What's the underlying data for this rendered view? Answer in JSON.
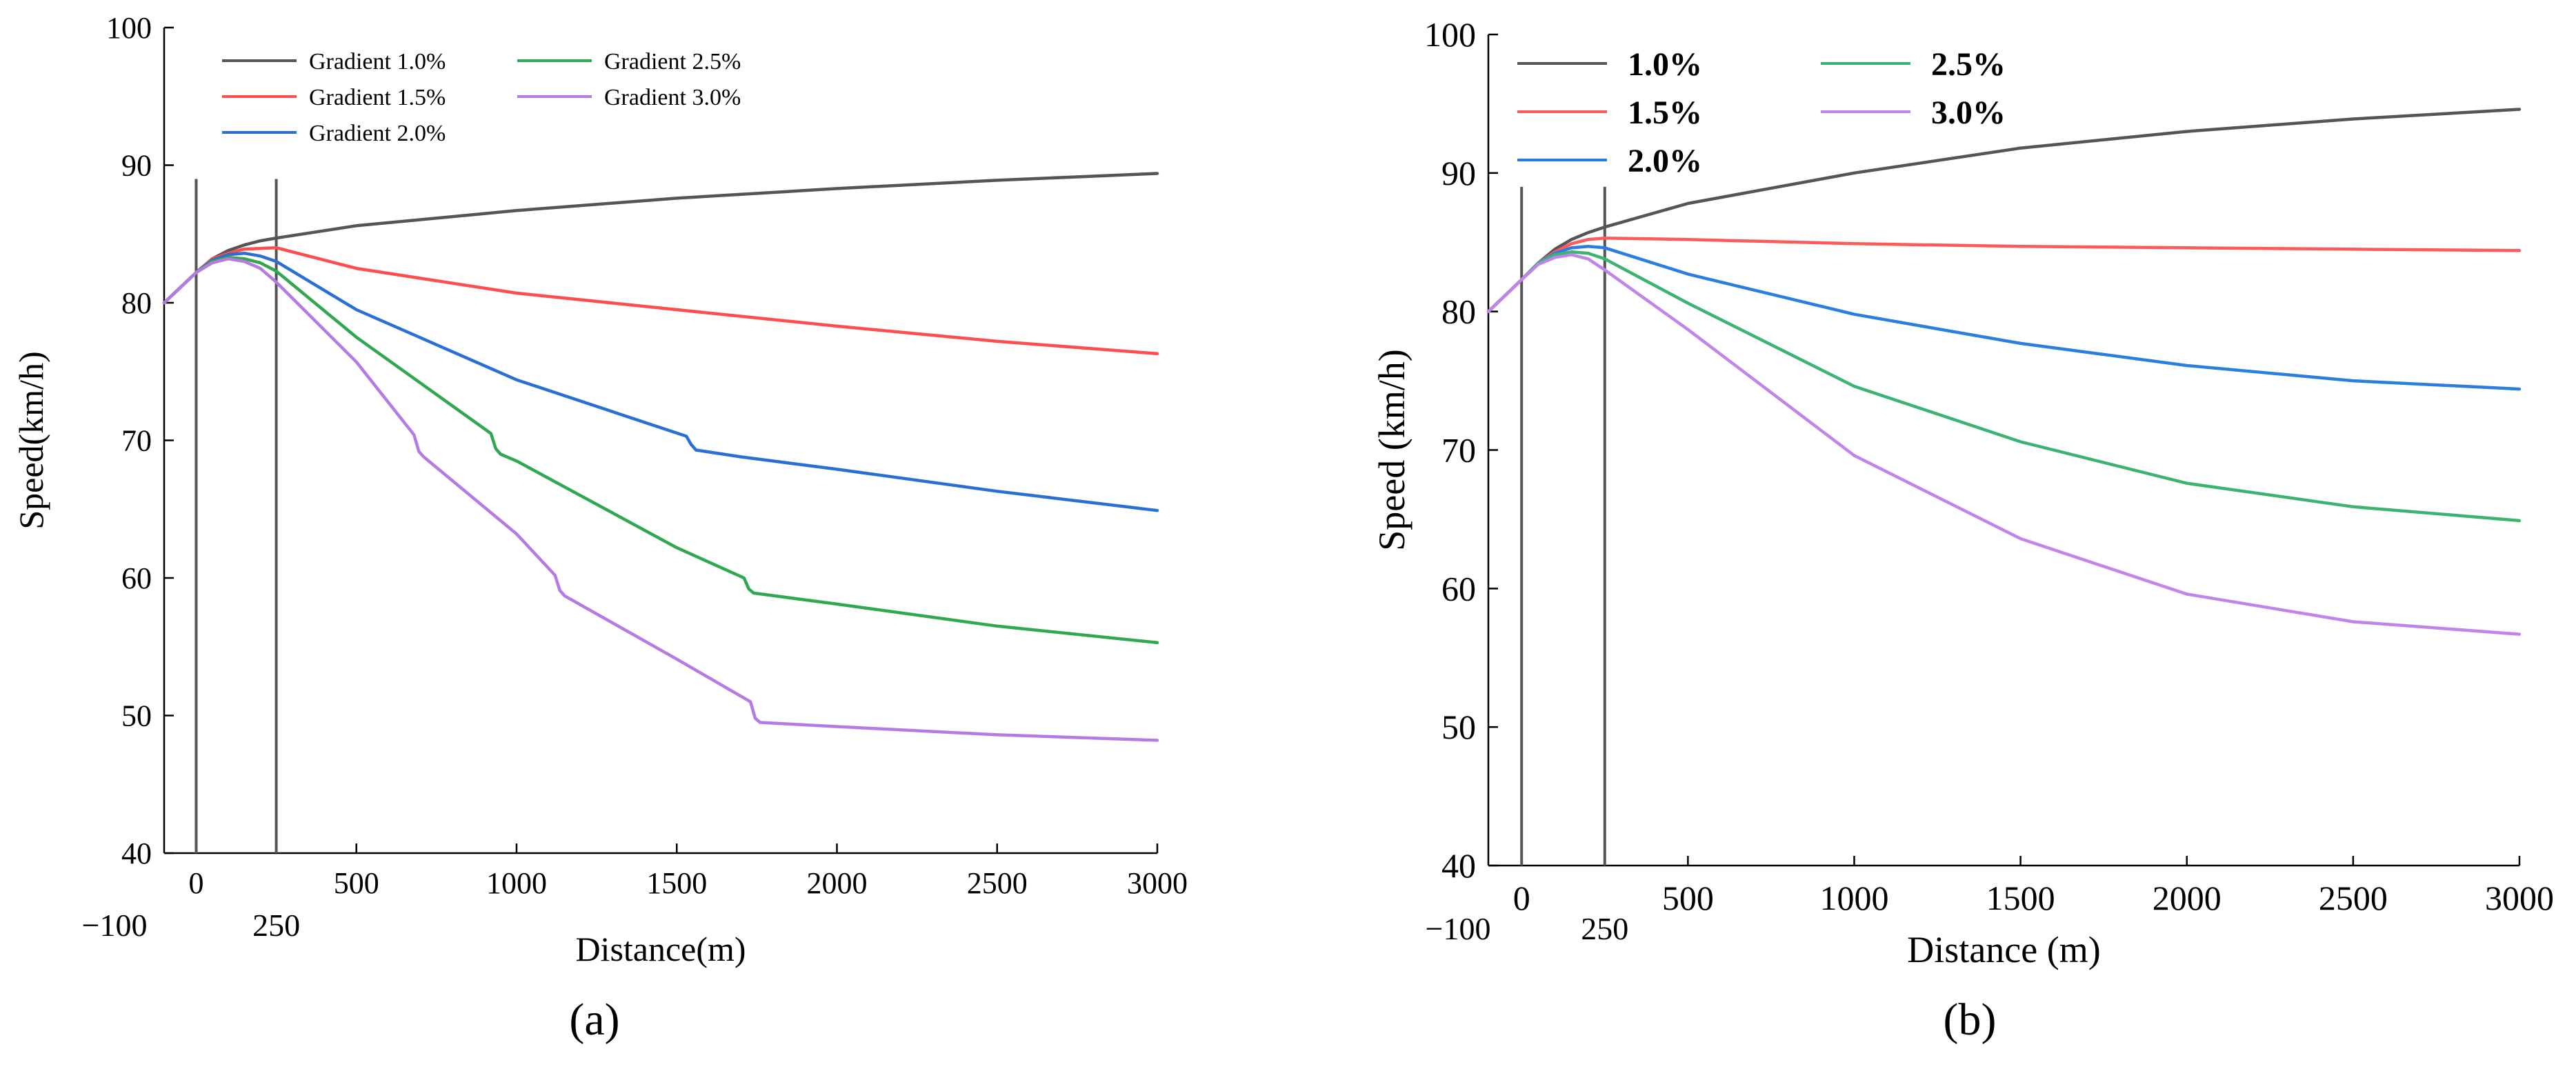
{
  "chart_data": [
    {
      "type": "line",
      "panel_label": "(a)",
      "xlabel": "Distance(m)",
      "ylabel": "Speed(km/h)",
      "xlim": [
        -100,
        3000
      ],
      "ylim": [
        40,
        100
      ],
      "xticks": [
        0,
        500,
        1000,
        1500,
        2000,
        2500,
        3000
      ],
      "yticks": [
        40,
        50,
        60,
        70,
        80,
        90,
        100
      ],
      "extra_xlabels": [
        "−100",
        "250"
      ],
      "vlines": [
        0,
        250
      ],
      "vline_top": 89,
      "legend": {
        "placement": "top-left",
        "columns": 2
      },
      "series": [
        {
          "name": "Gradient 1.0%",
          "color": "#555555",
          "x": [
            -100,
            0,
            50,
            100,
            150,
            200,
            250,
            500,
            1000,
            1500,
            2000,
            2500,
            3000
          ],
          "y": [
            80,
            82.2,
            83.2,
            83.8,
            84.2,
            84.5,
            84.7,
            85.6,
            86.7,
            87.6,
            88.3,
            88.9,
            89.4
          ]
        },
        {
          "name": "Gradient 1.5%",
          "color": "#ff4d4d",
          "x": [
            -100,
            0,
            50,
            100,
            150,
            200,
            250,
            500,
            1000,
            1500,
            2000,
            2500,
            3000
          ],
          "y": [
            80,
            82.2,
            83.2,
            83.6,
            83.9,
            83.95,
            84.0,
            82.5,
            80.7,
            79.5,
            78.3,
            77.2,
            76.3
          ]
        },
        {
          "name": "Gradient 2.0%",
          "color": "#2a6fd6",
          "x": [
            -100,
            0,
            50,
            100,
            150,
            200,
            250,
            500,
            1000,
            1530,
            1545,
            1560,
            1700,
            2000,
            2500,
            3000
          ],
          "y": [
            80,
            82.2,
            83.1,
            83.5,
            83.6,
            83.4,
            83.0,
            79.5,
            74.4,
            70.3,
            69.7,
            69.3,
            68.8,
            67.9,
            66.3,
            64.9
          ]
        },
        {
          "name": "Gradient 2.5%",
          "color": "#2fa84f",
          "x": [
            -100,
            0,
            50,
            100,
            150,
            200,
            250,
            500,
            920,
            935,
            950,
            1000,
            1500,
            1710,
            1725,
            1740,
            2000,
            2500,
            3000
          ],
          "y": [
            80,
            82.2,
            83.0,
            83.3,
            83.2,
            82.9,
            82.3,
            77.5,
            70.5,
            69.4,
            69.0,
            68.5,
            62.2,
            60.0,
            59.2,
            58.9,
            58.1,
            56.5,
            55.3
          ]
        },
        {
          "name": "Gradient 3.0%",
          "color": "#b57be3",
          "x": [
            -100,
            0,
            50,
            100,
            150,
            200,
            250,
            500,
            680,
            695,
            710,
            1000,
            1120,
            1135,
            1150,
            1500,
            1730,
            1745,
            1760,
            2000,
            2500,
            3000
          ],
          "y": [
            80,
            82.2,
            82.9,
            83.2,
            83.0,
            82.5,
            81.5,
            75.7,
            70.4,
            69.2,
            68.8,
            63.2,
            60.2,
            59.1,
            58.7,
            54.1,
            51.0,
            49.8,
            49.5,
            49.2,
            48.6,
            48.2
          ]
        }
      ]
    },
    {
      "type": "line",
      "panel_label": "(b)",
      "xlabel": "Distance (m)",
      "ylabel": "Speed (km/h)",
      "xlim": [
        -100,
        3000
      ],
      "ylim": [
        40,
        100
      ],
      "xticks": [
        0,
        500,
        1000,
        1500,
        2000,
        2500,
        3000
      ],
      "yticks": [
        40,
        50,
        60,
        70,
        80,
        90,
        100
      ],
      "extra_xlabels": [
        "−100",
        "250"
      ],
      "vlines": [
        0,
        250
      ],
      "vline_top": 89,
      "legend": {
        "placement": "top-left",
        "columns": 2
      },
      "series": [
        {
          "name": "1.0%",
          "color": "#555555",
          "x": [
            -100,
            0,
            50,
            100,
            150,
            200,
            250,
            500,
            1000,
            1500,
            2000,
            2500,
            3000
          ],
          "y": [
            80,
            82.3,
            83.5,
            84.5,
            85.2,
            85.7,
            86.1,
            87.8,
            90.0,
            91.8,
            93.0,
            93.9,
            94.6
          ]
        },
        {
          "name": "1.5%",
          "color": "#ff5a5a",
          "x": [
            -100,
            0,
            50,
            100,
            150,
            200,
            250,
            500,
            1000,
            1500,
            2000,
            2500,
            3000
          ],
          "y": [
            80,
            82.3,
            83.5,
            84.3,
            84.9,
            85.2,
            85.3,
            85.2,
            84.9,
            84.7,
            84.6,
            84.5,
            84.4
          ]
        },
        {
          "name": "2.0%",
          "color": "#2a7de1",
          "x": [
            -100,
            0,
            50,
            100,
            150,
            200,
            250,
            500,
            1000,
            1500,
            2000,
            2500,
            3000
          ],
          "y": [
            80,
            82.3,
            83.5,
            84.2,
            84.6,
            84.7,
            84.6,
            82.7,
            79.8,
            77.7,
            76.1,
            75.0,
            74.4
          ]
        },
        {
          "name": "2.5%",
          "color": "#3cb371",
          "x": [
            -100,
            0,
            50,
            100,
            150,
            200,
            250,
            500,
            1000,
            1500,
            2000,
            2500,
            3000
          ],
          "y": [
            80,
            82.3,
            83.5,
            84.1,
            84.3,
            84.2,
            83.8,
            80.6,
            74.6,
            70.6,
            67.6,
            65.9,
            64.9
          ]
        },
        {
          "name": "3.0%",
          "color": "#c184e8",
          "x": [
            -100,
            0,
            50,
            100,
            150,
            200,
            250,
            500,
            1000,
            1500,
            2000,
            2500,
            3000
          ],
          "y": [
            80,
            82.3,
            83.4,
            83.9,
            84.1,
            83.8,
            83.0,
            78.7,
            69.6,
            63.6,
            59.6,
            57.6,
            56.7
          ]
        }
      ]
    }
  ]
}
